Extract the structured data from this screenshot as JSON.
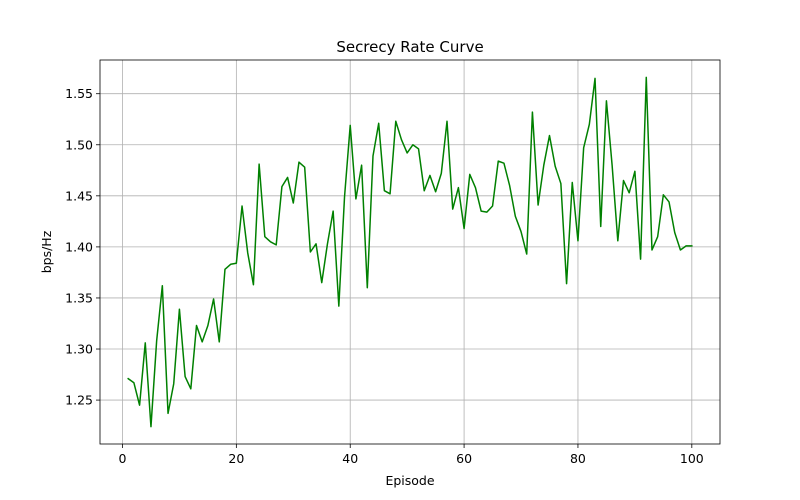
{
  "chart_data": {
    "type": "line",
    "title": "Secrecy Rate Curve",
    "xlabel": "Episode",
    "ylabel": "bps/Hz",
    "xlim": [
      -3.95,
      104.95
    ],
    "ylim": [
      1.207,
      1.583
    ],
    "xticks": [
      0,
      20,
      40,
      60,
      80,
      100
    ],
    "xtick_labels": [
      "0",
      "20",
      "40",
      "60",
      "80",
      "100"
    ],
    "yticks": [
      1.25,
      1.3,
      1.35,
      1.4,
      1.45,
      1.5,
      1.55
    ],
    "ytick_labels": [
      "1.25",
      "1.30",
      "1.35",
      "1.40",
      "1.45",
      "1.50",
      "1.55"
    ],
    "grid": true,
    "series": [
      {
        "color": "#008000",
        "x": [
          1,
          2,
          3,
          4,
          5,
          6,
          7,
          8,
          9,
          10,
          11,
          12,
          13,
          14,
          15,
          16,
          17,
          18,
          19,
          20,
          21,
          22,
          23,
          24,
          25,
          26,
          27,
          28,
          29,
          30,
          31,
          32,
          33,
          34,
          35,
          36,
          37,
          38,
          39,
          40,
          41,
          42,
          43,
          44,
          45,
          46,
          47,
          48,
          49,
          50,
          51,
          52,
          53,
          54,
          55,
          56,
          57,
          58,
          59,
          60,
          61,
          62,
          63,
          64,
          65,
          66,
          67,
          68,
          69,
          70,
          71,
          72,
          73,
          74,
          75,
          76,
          77,
          78,
          79,
          80,
          81,
          82,
          83,
          84,
          85,
          86,
          87,
          88,
          89,
          90,
          91,
          92,
          93,
          94,
          95,
          96,
          97,
          98,
          99,
          100
        ],
        "y": [
          1.271,
          1.267,
          1.245,
          1.306,
          1.224,
          1.308,
          1.362,
          1.237,
          1.266,
          1.339,
          1.273,
          1.261,
          1.323,
          1.307,
          1.323,
          1.349,
          1.307,
          1.378,
          1.383,
          1.384,
          1.44,
          1.394,
          1.363,
          1.481,
          1.41,
          1.405,
          1.402,
          1.459,
          1.468,
          1.443,
          1.483,
          1.478,
          1.395,
          1.403,
          1.365,
          1.403,
          1.435,
          1.342,
          1.449,
          1.519,
          1.447,
          1.48,
          1.36,
          1.489,
          1.521,
          1.455,
          1.452,
          1.523,
          1.505,
          1.492,
          1.5,
          1.496,
          1.455,
          1.47,
          1.454,
          1.472,
          1.523,
          1.437,
          1.458,
          1.418,
          1.471,
          1.458,
          1.435,
          1.434,
          1.44,
          1.484,
          1.482,
          1.46,
          1.43,
          1.415,
          1.393,
          1.532,
          1.441,
          1.48,
          1.509,
          1.479,
          1.462,
          1.364,
          1.463,
          1.406,
          1.497,
          1.52,
          1.565,
          1.42,
          1.543,
          1.48,
          1.406,
          1.465,
          1.453,
          1.474,
          1.388,
          1.566,
          1.397,
          1.41,
          1.451,
          1.444,
          1.414,
          1.397,
          1.401,
          1.401
        ]
      }
    ]
  }
}
